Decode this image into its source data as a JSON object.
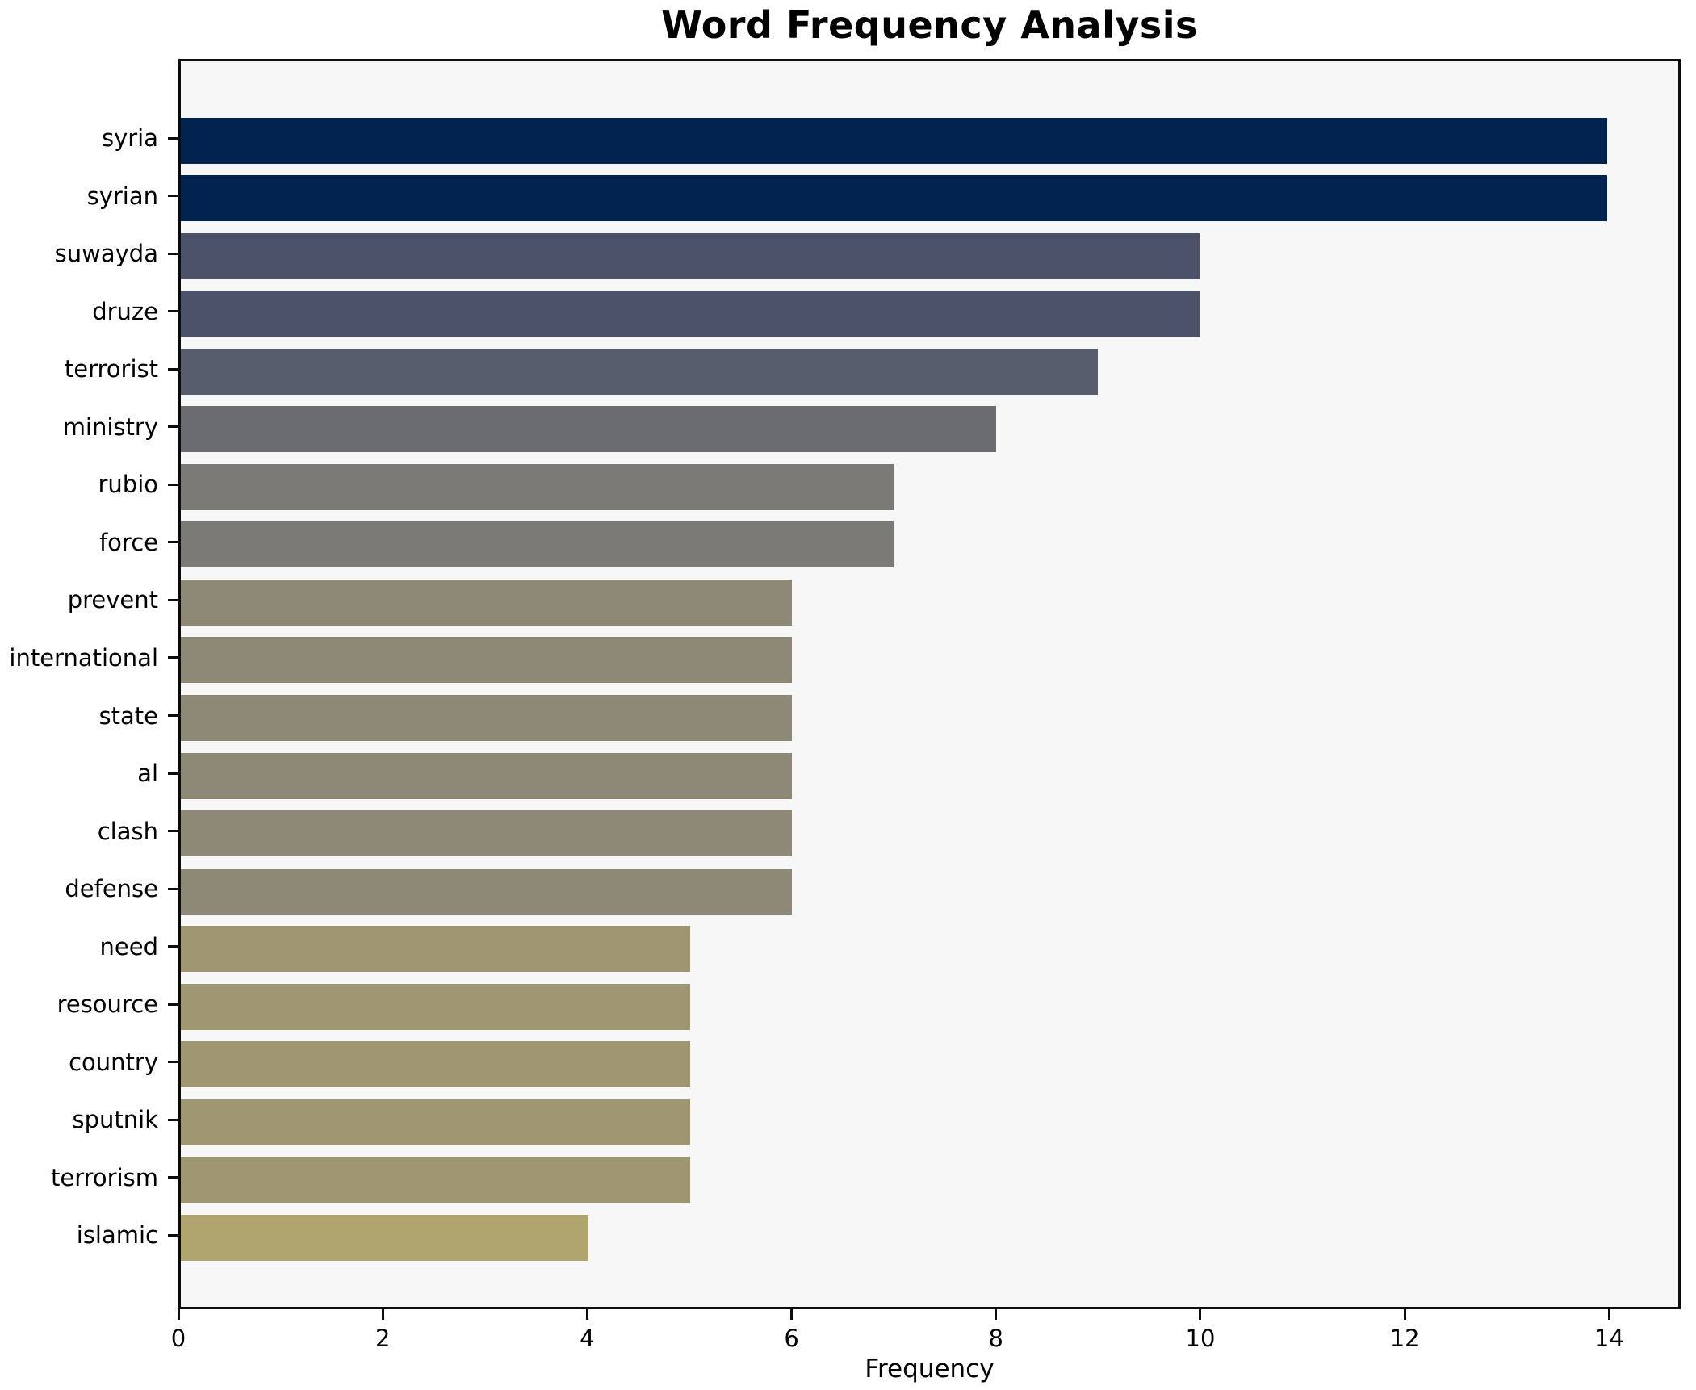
{
  "title": "Word Frequency Analysis",
  "chart_data": {
    "type": "bar",
    "orientation": "horizontal",
    "title": "Word Frequency Analysis",
    "xlabel": "Frequency",
    "ylabel": "",
    "categories": [
      "syria",
      "syrian",
      "suwayda",
      "druze",
      "terrorist",
      "ministry",
      "rubio",
      "force",
      "prevent",
      "international",
      "state",
      "al",
      "clash",
      "defense",
      "need",
      "resource",
      "country",
      "sputnik",
      "terrorism",
      "islamic"
    ],
    "values": [
      14,
      14,
      10,
      10,
      9,
      8,
      7,
      7,
      6,
      6,
      6,
      6,
      6,
      6,
      5,
      5,
      5,
      5,
      5,
      4
    ],
    "bar_colors": [
      "#02234f",
      "#02234f",
      "#4c5269",
      "#4c5269",
      "#585d6e",
      "#6b6c70",
      "#7b7a76",
      "#7b7a76",
      "#8e8877",
      "#8e8877",
      "#8e8877",
      "#8e8877",
      "#8e8877",
      "#8e8877",
      "#9f9772",
      "#9f9772",
      "#9f9772",
      "#9f9772",
      "#9f9772",
      "#b0a56f"
    ],
    "x_ticks": [
      0,
      2,
      4,
      6,
      8,
      10,
      12,
      14
    ],
    "xlim": [
      0,
      14.7
    ],
    "grid": false,
    "legend": null,
    "plot_background": "#f7f7f7",
    "figure_background": "#ffffff",
    "axis_color": "#0d0d0d"
  }
}
